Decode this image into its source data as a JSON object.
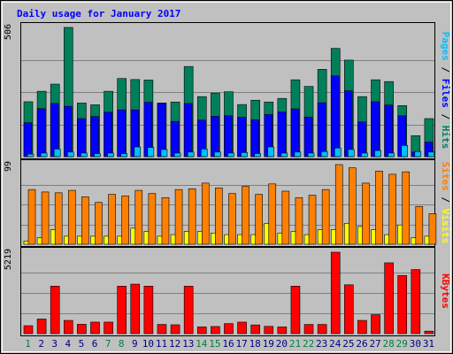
{
  "chart_data": [
    {
      "type": "bar",
      "title": "Daily usage for January 2017",
      "ylabel_parts": [
        {
          "text": "Pages",
          "color": "#00c0ff"
        },
        {
          "text": " / ",
          "color": "#000000"
        },
        {
          "text": "Files",
          "color": "#0000ff"
        },
        {
          "text": " / ",
          "color": "#000000"
        },
        {
          "text": "Hits",
          "color": "#008060"
        }
      ],
      "ymax_label": "506",
      "ylim": [
        0,
        506
      ],
      "series": [
        {
          "name": "Hits",
          "color": "#00805a",
          "values": [
            215,
            256,
            284,
            506,
            210,
            203,
            256,
            306,
            302,
            300,
            210,
            214,
            353,
            235,
            249,
            254,
            204,
            221,
            214,
            228,
            301,
            275,
            342,
            424,
            378,
            235,
            301,
            294,
            200,
            82,
            149
          ]
        },
        {
          "name": "Files",
          "color": "#0000ff",
          "values": [
            133,
            188,
            208,
            197,
            149,
            157,
            174,
            183,
            183,
            213,
            208,
            138,
            208,
            143,
            158,
            160,
            154,
            144,
            165,
            175,
            187,
            155,
            211,
            316,
            258,
            136,
            215,
            202,
            160,
            18,
            57
          ]
        },
        {
          "name": "Pages",
          "color": "#00c0ff",
          "values": [
            10,
            14,
            30,
            18,
            14,
            12,
            14,
            12,
            38,
            36,
            28,
            14,
            18,
            30,
            18,
            14,
            16,
            12,
            38,
            14,
            18,
            14,
            20,
            34,
            28,
            14,
            24,
            14,
            44,
            20,
            18
          ]
        }
      ]
    },
    {
      "type": "bar",
      "ylabel_parts": [
        {
          "text": "Sites",
          "color": "#ff8000"
        },
        {
          "text": " / ",
          "color": "#000000"
        },
        {
          "text": "Visits",
          "color": "#ffff00"
        }
      ],
      "ymax_label": "99",
      "ylim": [
        0,
        99
      ],
      "series": [
        {
          "name": "Visits",
          "color": "#ffff00",
          "values": [
            4,
            8,
            18,
            10,
            10,
            10,
            10,
            10,
            20,
            16,
            10,
            12,
            16,
            16,
            14,
            12,
            12,
            12,
            26,
            14,
            16,
            12,
            18,
            18,
            26,
            22,
            18,
            12,
            24,
            8,
            10
          ]
        },
        {
          "name": "Sites",
          "color": "#ff8000",
          "values": [
            68,
            65,
            64,
            67,
            59,
            52,
            62,
            60,
            67,
            63,
            58,
            68,
            69,
            76,
            70,
            63,
            72,
            62,
            75,
            66,
            58,
            61,
            68,
            99,
            95,
            76,
            91,
            87,
            90,
            47,
            38
          ]
        }
      ]
    },
    {
      "type": "bar",
      "ylabel_parts": [
        {
          "text": "KBytes",
          "color": "#ff0000"
        }
      ],
      "ymax_label": "5219",
      "ylim": [
        0,
        5219
      ],
      "series": [
        {
          "name": "KBytes",
          "color": "#ff0000",
          "values": [
            509,
            938,
            3044,
            849,
            602,
            739,
            739,
            3044,
            3174,
            3044,
            591,
            568,
            3044,
            433,
            456,
            643,
            739,
            560,
            467,
            433,
            3044,
            591,
            591,
            5219,
            3130,
            849,
            1216,
            4540,
            3731,
            4108,
            160
          ]
        }
      ]
    }
  ],
  "days": [
    "1",
    "2",
    "3",
    "4",
    "5",
    "6",
    "7",
    "8",
    "9",
    "10",
    "11",
    "12",
    "13",
    "14",
    "15",
    "16",
    "17",
    "18",
    "19",
    "20",
    "21",
    "22",
    "23",
    "24",
    "25",
    "26",
    "27",
    "28",
    "29",
    "30",
    "31"
  ],
  "weekend_days": [
    1,
    7,
    8,
    14,
    15,
    21,
    22,
    28,
    29
  ],
  "colors": {
    "background": "#c0c0c0",
    "title": "#0000ff",
    "weekday": "#000080",
    "weekend": "#008040"
  }
}
